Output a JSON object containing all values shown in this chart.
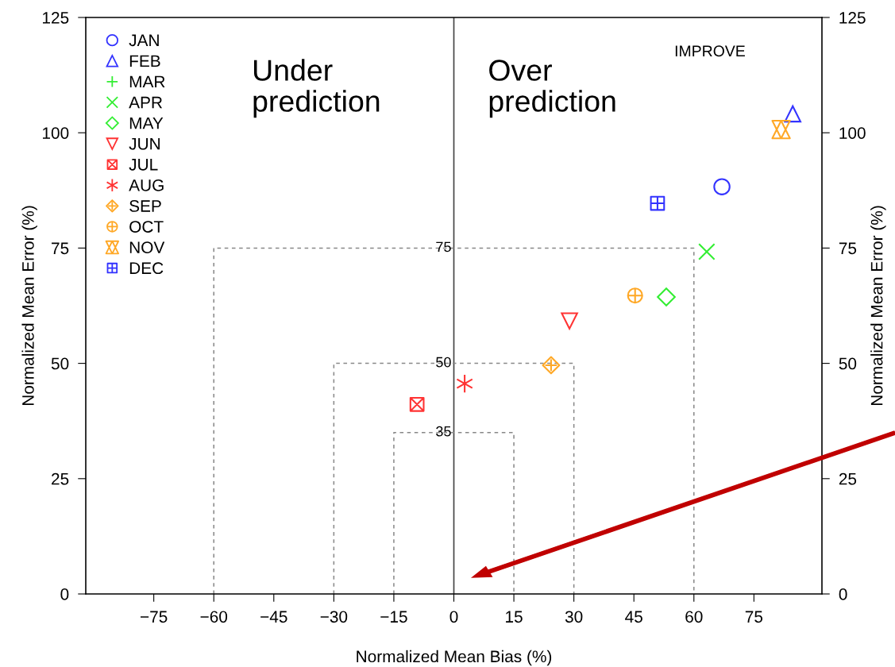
{
  "chart_data": {
    "type": "scatter",
    "xlabel": "Normalized Mean Bias (%)",
    "ylabel": "Normalized Mean Error (%)",
    "y2label": "Normalized Mean Error (%)",
    "xlim": [
      -92,
      92
    ],
    "ylim": [
      0,
      125
    ],
    "y2lim": [
      0,
      125
    ],
    "xticks": [
      {
        "value": -75,
        "label": "−75"
      },
      {
        "value": -60,
        "label": "−60"
      },
      {
        "value": -45,
        "label": "−45"
      },
      {
        "value": -30,
        "label": "−30"
      },
      {
        "value": -15,
        "label": "−15"
      },
      0,
      15,
      30,
      45,
      60,
      75
    ],
    "yticks": [
      0,
      25,
      50,
      75,
      100,
      125
    ],
    "y2ticks": [
      0,
      25,
      50,
      75,
      100,
      125
    ],
    "grid": false,
    "legend": "top left",
    "series": [
      {
        "name": "JAN",
        "color": "#3333ff",
        "marker": "circle",
        "x": [
          67.0
        ],
        "values": [
          88.3
        ]
      },
      {
        "name": "FEB",
        "color": "#3333ff",
        "marker": "triangle",
        "x": [
          84.7
        ],
        "values": [
          104.1
        ]
      },
      {
        "name": "MAR",
        "color": "#33ee33",
        "marker": "cross",
        "x": [
          null
        ],
        "values": [
          null
        ]
      },
      {
        "name": "APR",
        "color": "#33ee33",
        "marker": "cross",
        "x": [
          63.2
        ],
        "values": [
          74.2
        ]
      },
      {
        "name": "MAY",
        "color": "#33ee33",
        "marker": "diamond",
        "x": [
          53.1
        ],
        "values": [
          64.4
        ]
      },
      {
        "name": "JUN",
        "color": "#ff3333",
        "marker": "triangle",
        "x": [
          28.9
        ],
        "values": [
          59.2
        ]
      },
      {
        "name": "JUL",
        "color": "#ff3333",
        "marker": "cross",
        "x": [
          -9.2
        ],
        "values": [
          41.1
        ]
      },
      {
        "name": "AUG",
        "color": "#ff3333",
        "marker": "cross",
        "x": [
          2.7
        ],
        "values": [
          45.6
        ]
      },
      {
        "name": "SEP",
        "color": "#ffa826",
        "marker": "cross",
        "x": [
          24.3
        ],
        "values": [
          49.6
        ]
      },
      {
        "name": "OCT",
        "color": "#ffa826",
        "marker": "cross",
        "x": [
          45.3
        ],
        "values": [
          64.7
        ]
      },
      {
        "name": "NOV",
        "color": "#ffa826",
        "marker": "cross",
        "x": [
          81.8
        ],
        "values": [
          100.7
        ]
      },
      {
        "name": "DEC",
        "color": "#3333ff",
        "marker": "cross",
        "x": [
          50.9
        ],
        "values": [
          84.7
        ]
      },
      {
        "type": "line",
        "color": "#888888",
        "line_style": "dashed",
        "x": [
          -60,
          -60,
          60,
          60
        ],
        "values": [
          0,
          75,
          75,
          0
        ]
      },
      {
        "type": "line",
        "color": "#888888",
        "line_style": "dashed",
        "x": [
          -30,
          -30,
          30,
          30
        ],
        "values": [
          0,
          50,
          50,
          0
        ]
      },
      {
        "type": "line",
        "color": "#888888",
        "line_style": "dashed",
        "x": [
          -15,
          -15,
          15,
          15
        ],
        "values": [
          0,
          35,
          35,
          0
        ]
      }
    ],
    "ref_lines": [
      {
        "axis": "x",
        "value": 0,
        "color": "#444444",
        "line_style": "solid"
      }
    ],
    "annotations": [
      "Under\nprediction",
      "Over\nprediction",
      "IMPROVE",
      {
        "text": "75",
        "y": 75
      },
      {
        "text": "50",
        "y": 50
      },
      {
        "text": "35",
        "y": 35
      }
    ]
  }
}
